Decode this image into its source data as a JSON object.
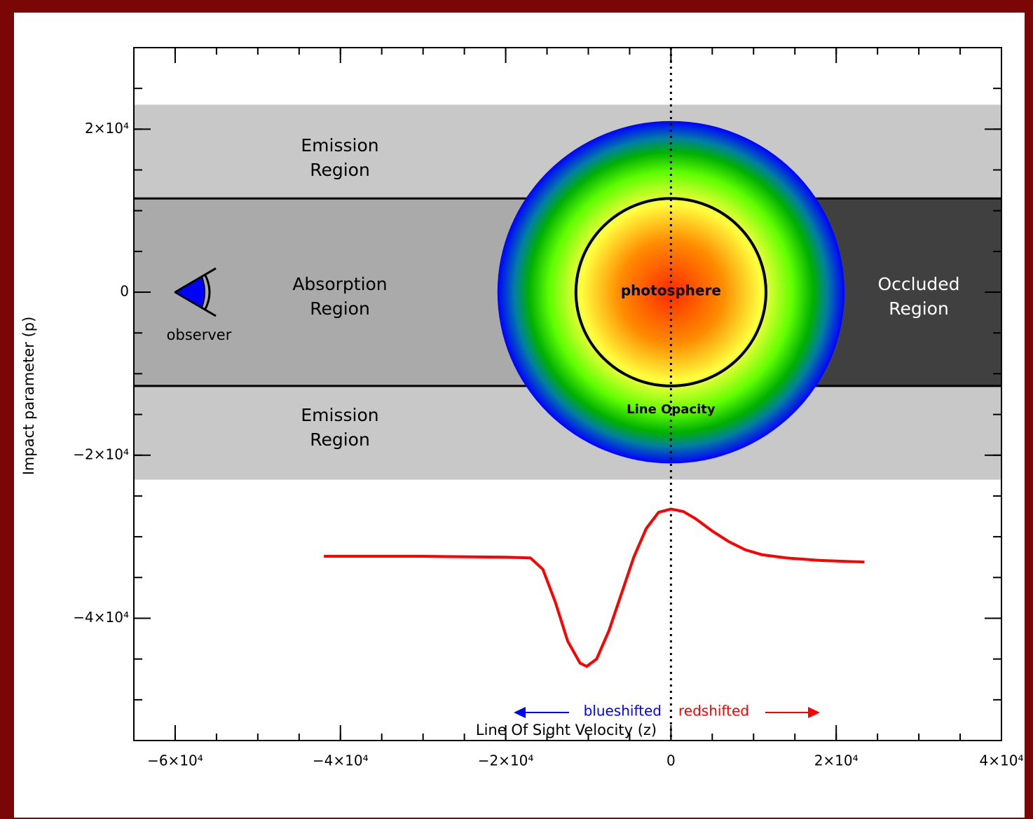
{
  "chart_data": {
    "type": "line",
    "x_label": "Line Of Sight Velocity (z)",
    "y_label": "Impact parameter (p)",
    "xlim": [
      -65000,
      40000
    ],
    "ylim": [
      -55000,
      30000
    ],
    "xticks": [
      {
        "value": -60000,
        "label": "−6×10⁴"
      },
      {
        "value": -40000,
        "label": "−4×10⁴"
      },
      {
        "value": -20000,
        "label": "−2×10⁴"
      },
      0,
      {
        "value": 20000,
        "label": "2×10⁴"
      },
      {
        "value": 40000,
        "label": "4×10⁴"
      }
    ],
    "yticks": [
      {
        "value": -40000,
        "label": "−4×10⁴"
      },
      {
        "value": -20000,
        "label": "−2×10⁴"
      },
      0,
      {
        "value": 20000,
        "label": "2×10⁴"
      }
    ],
    "regions": [
      {
        "label": [
          "Emission",
          "Region"
        ],
        "ylim": [
          11500,
          23000
        ],
        "color": "#c8c8c8"
      },
      {
        "label": [
          "Absorption",
          "Region"
        ],
        "ylim": [
          -11500,
          11500
        ],
        "color": "#aaaaaa"
      },
      {
        "label": [
          "Emission",
          "Region"
        ],
        "ylim": [
          -23000,
          -11500
        ],
        "color": "#c8c8c8"
      },
      {
        "label": [
          "Occluded",
          "Region"
        ],
        "ylim": [
          -11500,
          11500
        ],
        "xlim": [
          0,
          40000
        ],
        "color": "#404040"
      }
    ],
    "opacity_radius": 21000,
    "opacity_label": "Line Opacity",
    "photosphere_radius": 11500,
    "photosphere_label": "photosphere",
    "observer_label": "observer",
    "blueshift_label": "blueshifted",
    "redshift_label": "redshifted",
    "series": [
      {
        "color": "#ff0000",
        "x": [
          -42000,
          -30000,
          -20000,
          -17000,
          -15500,
          -14000,
          -12500,
          -11000,
          -10200,
          -9000,
          -7500,
          -6000,
          -4500,
          -3000,
          -1500,
          0,
          1500,
          3000,
          5000,
          7000,
          9000,
          11000,
          14000,
          18000,
          23400
        ],
        "values": [
          -32400,
          -32400,
          -32500,
          -32600,
          -34000,
          -38000,
          -42800,
          -45500,
          -45900,
          -45000,
          -41500,
          -37000,
          -32500,
          -29000,
          -27000,
          -26600,
          -26900,
          -27800,
          -29300,
          -30600,
          -31600,
          -32200,
          -32600,
          -32900,
          -33100
        ]
      }
    ]
  }
}
